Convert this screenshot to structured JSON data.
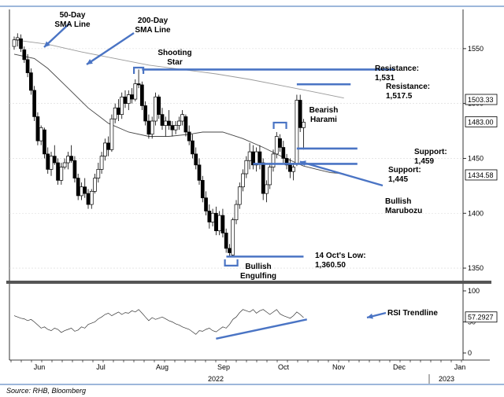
{
  "chart_data": [
    {
      "type": "candlestick",
      "title": "",
      "ylim": [
        1340,
        1580
      ],
      "yticks": [
        "1550",
        "1500",
        "1450",
        "1400",
        "1350"
      ],
      "last_price_tags": [
        "1503.33",
        "1483.00",
        "1434.58"
      ],
      "x_months": [
        "Jun",
        "Jul",
        "Aug",
        "Sep",
        "Oct",
        "Nov",
        "Dec",
        "Jan"
      ],
      "x_years": [
        "2022",
        "2023"
      ],
      "series": [
        {
          "name": "50-Day SMA Line",
          "kind": "line",
          "points": [
            [
              0,
              1545
            ],
            [
              6,
              1541
            ],
            [
              10,
              1532
            ],
            [
              16,
              1514
            ],
            [
              22,
              1496
            ],
            [
              28,
              1482
            ],
            [
              34,
              1474
            ],
            [
              40,
              1470
            ],
            [
              46,
              1470
            ],
            [
              52,
              1472
            ],
            [
              56,
              1474
            ],
            [
              62,
              1474
            ],
            [
              68,
              1468
            ],
            [
              74,
              1460
            ],
            [
              80,
              1451
            ],
            [
              86,
              1443
            ],
            [
              90,
              1440
            ],
            [
              94,
              1437
            ],
            [
              98,
              1436
            ]
          ]
        },
        {
          "name": "200-Day SMA Line",
          "kind": "line",
          "points": [
            [
              0,
              1558
            ],
            [
              10,
              1554
            ],
            [
              20,
              1547
            ],
            [
              30,
              1541
            ],
            [
              40,
              1535
            ],
            [
              50,
              1531
            ],
            [
              60,
              1527
            ],
            [
              70,
              1522
            ],
            [
              80,
              1516
            ],
            [
              90,
              1510
            ],
            [
              98,
              1505
            ]
          ]
        }
      ],
      "candles": [
        [
          0,
          1552,
          1561,
          1549,
          1558
        ],
        [
          1,
          1558,
          1564,
          1552,
          1560
        ],
        [
          2,
          1559,
          1563,
          1547,
          1550
        ],
        [
          3,
          1549,
          1552,
          1537,
          1540
        ],
        [
          4,
          1540,
          1545,
          1524,
          1528
        ],
        [
          5,
          1528,
          1532,
          1508,
          1512
        ],
        [
          6,
          1512,
          1516,
          1484,
          1488
        ],
        [
          7,
          1488,
          1492,
          1462,
          1466
        ],
        [
          8,
          1466,
          1480,
          1462,
          1478
        ],
        [
          9,
          1476,
          1478,
          1450,
          1454
        ],
        [
          10,
          1454,
          1460,
          1436,
          1440
        ],
        [
          11,
          1440,
          1456,
          1434,
          1452
        ],
        [
          12,
          1452,
          1462,
          1444,
          1446
        ],
        [
          13,
          1446,
          1450,
          1426,
          1430
        ],
        [
          14,
          1430,
          1446,
          1426,
          1442
        ],
        [
          15,
          1442,
          1450,
          1440,
          1446
        ],
        [
          16,
          1446,
          1456,
          1440,
          1452
        ],
        [
          17,
          1452,
          1462,
          1446,
          1448
        ],
        [
          18,
          1448,
          1452,
          1428,
          1432
        ],
        [
          19,
          1432,
          1436,
          1412,
          1416
        ],
        [
          20,
          1416,
          1428,
          1412,
          1424
        ],
        [
          21,
          1424,
          1432,
          1414,
          1418
        ],
        [
          22,
          1418,
          1422,
          1404,
          1408
        ],
        [
          23,
          1408,
          1422,
          1404,
          1420
        ],
        [
          24,
          1420,
          1436,
          1418,
          1432
        ],
        [
          25,
          1432,
          1446,
          1428,
          1440
        ],
        [
          26,
          1440,
          1456,
          1436,
          1452
        ],
        [
          27,
          1452,
          1468,
          1448,
          1464
        ],
        [
          28,
          1464,
          1470,
          1452,
          1458
        ],
        [
          29,
          1458,
          1490,
          1456,
          1486
        ],
        [
          30,
          1486,
          1500,
          1482,
          1496
        ],
        [
          31,
          1496,
          1504,
          1484,
          1490
        ],
        [
          32,
          1490,
          1510,
          1486,
          1506
        ],
        [
          33,
          1506,
          1512,
          1496,
          1500
        ],
        [
          34,
          1500,
          1512,
          1494,
          1508
        ],
        [
          35,
          1508,
          1514,
          1500,
          1504
        ],
        [
          36,
          1504,
          1522,
          1502,
          1518
        ],
        [
          37,
          1518,
          1531,
          1514,
          1517
        ],
        [
          38,
          1517,
          1520,
          1494,
          1498
        ],
        [
          39,
          1498,
          1502,
          1480,
          1484
        ],
        [
          40,
          1484,
          1490,
          1468,
          1472
        ],
        [
          41,
          1472,
          1488,
          1468,
          1484
        ],
        [
          42,
          1484,
          1510,
          1480,
          1506
        ],
        [
          43,
          1506,
          1508,
          1486,
          1490
        ],
        [
          44,
          1490,
          1496,
          1476,
          1480
        ],
        [
          45,
          1480,
          1488,
          1470,
          1484
        ],
        [
          46,
          1484,
          1494,
          1476,
          1480
        ],
        [
          47,
          1480,
          1484,
          1470,
          1476
        ],
        [
          48,
          1476,
          1484,
          1472,
          1480
        ],
        [
          49,
          1480,
          1488,
          1476,
          1484
        ],
        [
          50,
          1484,
          1494,
          1480,
          1490
        ],
        [
          51,
          1488,
          1490,
          1470,
          1474
        ],
        [
          52,
          1474,
          1480,
          1462,
          1466
        ],
        [
          53,
          1466,
          1472,
          1450,
          1454
        ],
        [
          54,
          1454,
          1460,
          1440,
          1444
        ],
        [
          55,
          1444,
          1450,
          1426,
          1430
        ],
        [
          56,
          1430,
          1434,
          1410,
          1414
        ],
        [
          57,
          1414,
          1420,
          1398,
          1402
        ],
        [
          58,
          1402,
          1408,
          1386,
          1392
        ],
        [
          59,
          1392,
          1404,
          1388,
          1400
        ],
        [
          60,
          1400,
          1406,
          1380,
          1384
        ],
        [
          61,
          1384,
          1402,
          1380,
          1398
        ],
        [
          62,
          1398,
          1404,
          1378,
          1382
        ],
        [
          63,
          1382,
          1386,
          1364,
          1368
        ],
        [
          64,
          1368,
          1372,
          1360,
          1364
        ],
        [
          65,
          1362,
          1396,
          1360,
          1394
        ],
        [
          66,
          1394,
          1412,
          1390,
          1408
        ],
        [
          67,
          1408,
          1428,
          1404,
          1424
        ],
        [
          68,
          1424,
          1440,
          1420,
          1436
        ],
        [
          69,
          1436,
          1452,
          1432,
          1448
        ],
        [
          70,
          1448,
          1464,
          1440,
          1456
        ],
        [
          71,
          1456,
          1462,
          1440,
          1444
        ],
        [
          72,
          1444,
          1460,
          1438,
          1456
        ],
        [
          73,
          1456,
          1462,
          1440,
          1446
        ],
        [
          74,
          1446,
          1450,
          1412,
          1418
        ],
        [
          75,
          1418,
          1430,
          1410,
          1426
        ],
        [
          76,
          1426,
          1446,
          1422,
          1442
        ],
        [
          77,
          1442,
          1458,
          1438,
          1454
        ],
        [
          78,
          1454,
          1474,
          1450,
          1470
        ],
        [
          79,
          1468,
          1472,
          1456,
          1460
        ],
        [
          80,
          1460,
          1466,
          1446,
          1450
        ],
        [
          81,
          1450,
          1454,
          1440,
          1444
        ],
        [
          82,
          1444,
          1450,
          1432,
          1438
        ],
        [
          83,
          1438,
          1446,
          1430,
          1442
        ],
        [
          84,
          1445,
          1508,
          1443,
          1503
        ],
        [
          85,
          1503,
          1508,
          1474,
          1478
        ],
        [
          86,
          1478,
          1486,
          1458,
          1483
        ]
      ],
      "annotations": [
        {
          "label": "50-Day SMA Line",
          "lines": [
            "50-Day",
            "SMA Line"
          ]
        },
        {
          "label": "200-Day SMA Line",
          "lines": [
            "200-Day",
            "SMA Line"
          ]
        },
        {
          "label": "Shooting Star",
          "lines": [
            "Shooting",
            "Star"
          ]
        },
        {
          "label": "Resistance 1",
          "lines": [
            "Resistance:",
            "1,531"
          ],
          "level": 1531
        },
        {
          "label": "Resistance 2",
          "lines": [
            "Resistance:",
            "1,517.5"
          ],
          "level": 1517.5
        },
        {
          "label": "Bearish Harami",
          "lines": [
            "Bearish",
            "Harami"
          ]
        },
        {
          "label": "Support 1",
          "lines": [
            "Support:",
            "1,459"
          ],
          "level": 1459
        },
        {
          "label": "Support 2",
          "lines": [
            "Support:",
            "1,445"
          ],
          "level": 1445
        },
        {
          "label": "Bullish Marubozu",
          "lines": [
            "Bullish",
            "Marubozu"
          ]
        },
        {
          "label": "14 Oct Low",
          "lines": [
            "14 Oct's Low:",
            "1,360.50"
          ],
          "level": 1360.5
        },
        {
          "label": "Bullish Engulfing",
          "lines": [
            "Bullish",
            "Engulfing"
          ]
        }
      ]
    },
    {
      "type": "line",
      "title": "",
      "ylim": [
        0,
        100
      ],
      "yticks": [
        "100",
        "50",
        "0"
      ],
      "last_value_tag": "57.2927",
      "annotation": "RSI Trendline",
      "series": [
        {
          "name": "RSI",
          "values": [
            60,
            58,
            56,
            55,
            52,
            54,
            50,
            45,
            40,
            42,
            38,
            36,
            40,
            38,
            33,
            36,
            38,
            40,
            35,
            37,
            42,
            40,
            46,
            48,
            50,
            55,
            58,
            62,
            64,
            60,
            63,
            66,
            62,
            65,
            64,
            68,
            66,
            70,
            64,
            58,
            52,
            57,
            54,
            56,
            58,
            55,
            52,
            50,
            47,
            45,
            42,
            40,
            38,
            34,
            30,
            36,
            35,
            38,
            40,
            36,
            34,
            38,
            42,
            40,
            46,
            54,
            58,
            65,
            70,
            68,
            66,
            70,
            64,
            68,
            70,
            66,
            62,
            66,
            70,
            63,
            60,
            58,
            56,
            60,
            66,
            62,
            57
          ]
        },
        {
          "name": "RSI Trendline",
          "kind": "trendline",
          "points": [
            [
              60,
              23
            ],
            [
              87,
              54
            ]
          ]
        }
      ]
    }
  ],
  "footer": {
    "source": "Source: RHB, Bloomberg"
  }
}
